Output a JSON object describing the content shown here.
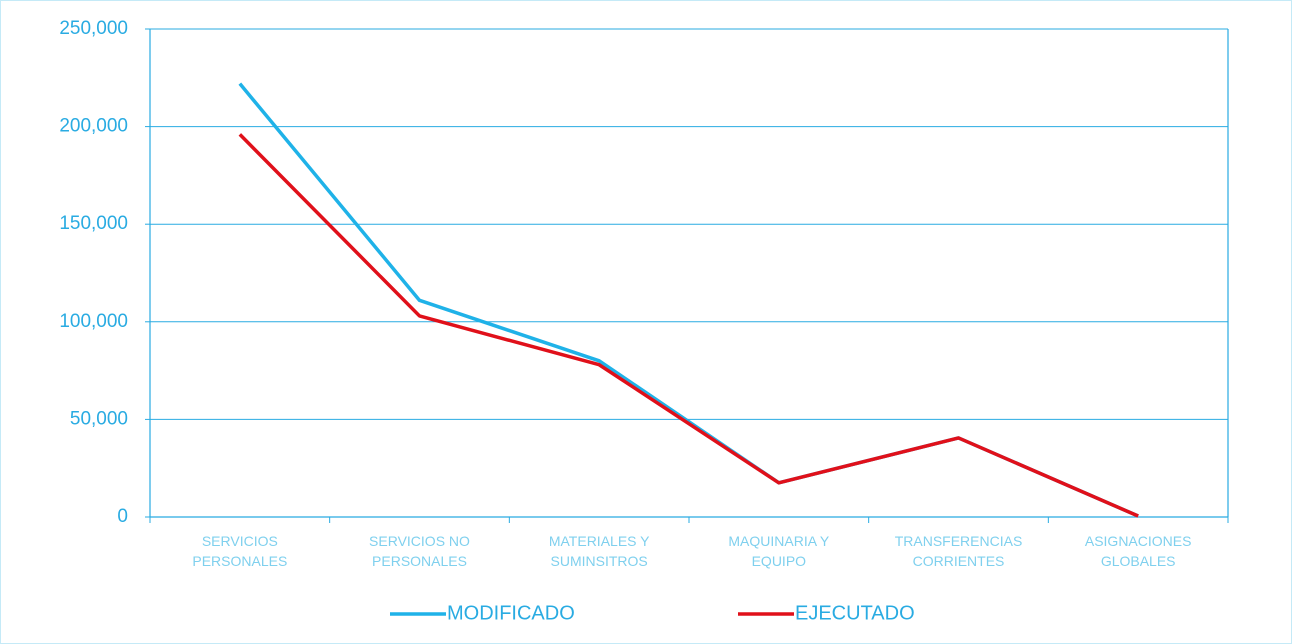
{
  "chart_data": {
    "type": "line",
    "categories": [
      "SERVICIOS\nPERSONALES",
      "SERVICIOS NO\nPERSONALES",
      "MATERIALES Y\nSUMINSITROS",
      "MAQUINARIA Y\nEQUIPO",
      "TRANSFERENCIAS\nCORRIENTES",
      "ASIGNACIONES\nGLOBALES"
    ],
    "series": [
      {
        "name": "MODIFICADO",
        "color": "#1fb2e8",
        "values": [
          222000,
          111000,
          80000,
          17500,
          40500,
          500
        ]
      },
      {
        "name": "EJECUTADO",
        "color": "#e0101a",
        "values": [
          196000,
          103000,
          78000,
          17500,
          40500,
          500
        ]
      }
    ],
    "ylim": [
      0,
      250000
    ],
    "yticks": [
      0,
      {
        "value": 50000,
        "label": "50,000"
      },
      {
        "value": 100000,
        "label": "100,000"
      },
      {
        "value": 150000,
        "label": "150,000"
      },
      {
        "value": 200000,
        "label": "200,000"
      },
      {
        "value": 250000,
        "label": "250,000"
      }
    ],
    "grid": true,
    "legend": "bottom"
  }
}
